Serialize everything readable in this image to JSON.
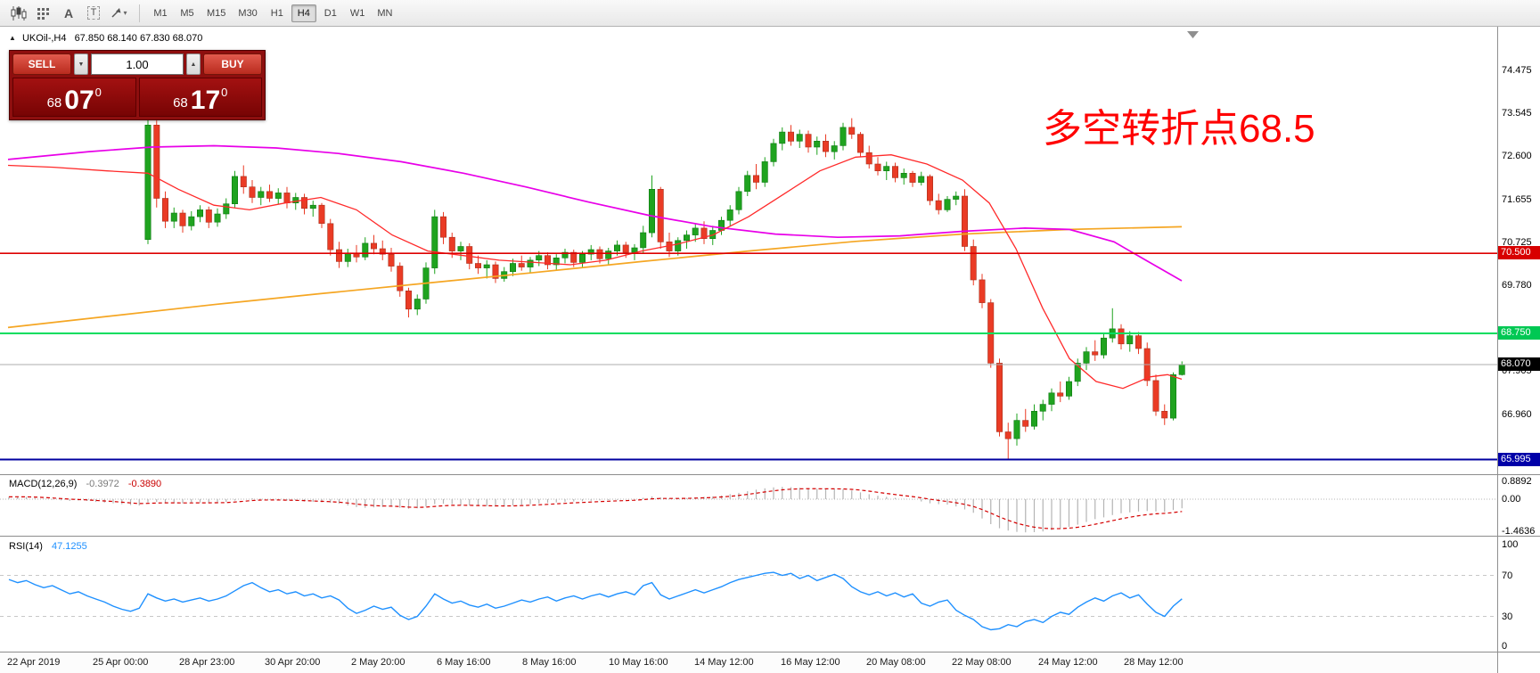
{
  "toolbar": {
    "timeframes": [
      "M1",
      "M5",
      "M15",
      "M30",
      "H1",
      "H4",
      "D1",
      "W1",
      "MN"
    ],
    "active_timeframe": "H4",
    "text_tool_glyph": "A",
    "label_tool_glyph": "T",
    "dropdown_glyph": "▾"
  },
  "chart": {
    "toggle_glyph": "▲",
    "symbol_title": "UKOil-,H4",
    "ohlc": "67.850 68.140 67.830 68.070",
    "annotation": {
      "text": "多空转折点68.5",
      "color": "#ff0000"
    },
    "trade_panel": {
      "sell_label": "SELL",
      "buy_label": "BUY",
      "volume": "1.00",
      "caret_up": "▲",
      "caret_down": "▼",
      "bid_small": "68",
      "bid_big": "07",
      "bid_sup": "0",
      "ask_small": "68",
      "ask_big": "17",
      "ask_sup": "0"
    },
    "price_axis": {
      "ticks": [
        74.475,
        73.545,
        72.6,
        71.655,
        70.725,
        69.78,
        67.905,
        66.96
      ],
      "levels": [
        {
          "value": "70.500",
          "price": 70.5,
          "bg": "#d80000"
        },
        {
          "value": "68.750",
          "price": 68.75,
          "bg": "#00c853"
        },
        {
          "value": "68.070",
          "price": 68.07,
          "bg": "#000000"
        },
        {
          "value": "65.995",
          "price": 65.995,
          "bg": "#0000a8"
        }
      ]
    },
    "time_axis": [
      "22 Apr 2019",
      "25 Apr 00:00",
      "28 Apr 23:00",
      "30 Apr 20:00",
      "2 May 20:00",
      "6 May 16:00",
      "8 May 16:00",
      "10 May 16:00",
      "14 May 12:00",
      "16 May 12:00",
      "20 May 08:00",
      "22 May 08:00",
      "24 May 12:00",
      "28 May 12:00"
    ]
  },
  "macd": {
    "label": "MACD(12,26,9)",
    "value_main": "-0.3972",
    "value_signal": "-0.3890",
    "axis": [
      "0.8892",
      "0.00",
      "-1.4636"
    ]
  },
  "rsi": {
    "label": "RSI(14)",
    "value": "47.1255",
    "axis": [
      "100",
      "70",
      "30",
      "0"
    ]
  },
  "chart_data": {
    "type": "candlestick",
    "symbol": "UKOil-",
    "timeframe": "H4",
    "ylim": [
      65.66,
      75.36
    ],
    "up_color": "#1fa31f",
    "down_color": "#ea3b25",
    "candles": [
      [
        70.8,
        73.45,
        70.7,
        73.3
      ],
      [
        73.3,
        73.4,
        71.5,
        71.7
      ],
      [
        71.7,
        71.85,
        71.05,
        71.2
      ],
      [
        71.2,
        71.5,
        71.05,
        71.38
      ],
      [
        71.38,
        71.45,
        70.95,
        71.1
      ],
      [
        71.1,
        71.42,
        71.0,
        71.3
      ],
      [
        71.3,
        71.55,
        71.18,
        71.45
      ],
      [
        71.45,
        71.52,
        71.05,
        71.18
      ],
      [
        71.18,
        71.48,
        71.08,
        71.36
      ],
      [
        71.36,
        71.7,
        71.25,
        71.58
      ],
      [
        71.58,
        72.3,
        71.5,
        72.18
      ],
      [
        72.18,
        72.42,
        71.8,
        71.95
      ],
      [
        71.95,
        72.1,
        71.6,
        71.72
      ],
      [
        71.72,
        71.95,
        71.55,
        71.85
      ],
      [
        71.85,
        72.0,
        71.62,
        71.7
      ],
      [
        71.7,
        71.92,
        71.58,
        71.82
      ],
      [
        71.82,
        71.95,
        71.48,
        71.6
      ],
      [
        71.6,
        71.82,
        71.45,
        71.72
      ],
      [
        71.72,
        71.8,
        71.35,
        71.48
      ],
      [
        71.48,
        71.65,
        71.3,
        71.55
      ],
      [
        71.55,
        71.6,
        71.05,
        71.15
      ],
      [
        71.15,
        71.25,
        70.45,
        70.58
      ],
      [
        70.58,
        70.75,
        70.18,
        70.32
      ],
      [
        70.32,
        70.6,
        70.2,
        70.5
      ],
      [
        70.5,
        70.68,
        70.3,
        70.42
      ],
      [
        70.42,
        70.85,
        70.35,
        70.72
      ],
      [
        70.72,
        70.9,
        70.48,
        70.6
      ],
      [
        70.6,
        70.78,
        70.35,
        70.48
      ],
      [
        70.48,
        70.62,
        70.1,
        70.22
      ],
      [
        70.22,
        70.3,
        69.55,
        69.68
      ],
      [
        69.68,
        69.75,
        69.1,
        69.28
      ],
      [
        69.28,
        69.6,
        69.15,
        69.5
      ],
      [
        69.5,
        70.3,
        69.4,
        70.18
      ],
      [
        70.18,
        71.45,
        70.05,
        71.3
      ],
      [
        71.3,
        71.4,
        70.7,
        70.85
      ],
      [
        70.85,
        70.95,
        70.4,
        70.55
      ],
      [
        70.55,
        70.75,
        70.35,
        70.65
      ],
      [
        70.65,
        70.72,
        70.15,
        70.28
      ],
      [
        70.28,
        70.45,
        70.05,
        70.18
      ],
      [
        70.18,
        70.35,
        69.95,
        70.25
      ],
      [
        70.25,
        70.32,
        69.85,
        69.95
      ],
      [
        69.95,
        70.2,
        69.88,
        70.1
      ],
      [
        70.1,
        70.38,
        70.0,
        70.28
      ],
      [
        70.28,
        70.45,
        70.12,
        70.2
      ],
      [
        70.2,
        70.42,
        70.08,
        70.35
      ],
      [
        70.35,
        70.55,
        70.22,
        70.45
      ],
      [
        70.45,
        70.52,
        70.15,
        70.25
      ],
      [
        70.25,
        70.48,
        70.12,
        70.4
      ],
      [
        70.4,
        70.6,
        70.28,
        70.52
      ],
      [
        70.52,
        70.58,
        70.2,
        70.3
      ],
      [
        70.3,
        70.55,
        70.18,
        70.48
      ],
      [
        70.48,
        70.68,
        70.35,
        70.58
      ],
      [
        70.58,
        70.65,
        70.28,
        70.38
      ],
      [
        70.38,
        70.62,
        70.25,
        70.55
      ],
      [
        70.55,
        70.78,
        70.45,
        70.68
      ],
      [
        70.68,
        70.75,
        70.4,
        70.52
      ],
      [
        70.52,
        70.7,
        70.35,
        70.62
      ],
      [
        70.62,
        71.1,
        70.5,
        70.95
      ],
      [
        70.95,
        72.2,
        70.85,
        71.9
      ],
      [
        71.9,
        71.95,
        70.6,
        70.75
      ],
      [
        70.75,
        70.95,
        70.42,
        70.55
      ],
      [
        70.55,
        70.85,
        70.45,
        70.78
      ],
      [
        70.78,
        71.0,
        70.6,
        70.9
      ],
      [
        70.9,
        71.15,
        70.75,
        71.05
      ],
      [
        71.05,
        71.2,
        70.7,
        70.82
      ],
      [
        70.82,
        71.1,
        70.68,
        71.0
      ],
      [
        71.0,
        71.3,
        70.9,
        71.22
      ],
      [
        71.22,
        71.55,
        71.1,
        71.45
      ],
      [
        71.45,
        71.95,
        71.35,
        71.85
      ],
      [
        71.85,
        72.3,
        71.75,
        72.2
      ],
      [
        72.2,
        72.45,
        71.9,
        72.05
      ],
      [
        72.05,
        72.6,
        71.95,
        72.5
      ],
      [
        72.5,
        73.0,
        72.4,
        72.9
      ],
      [
        72.9,
        73.25,
        72.75,
        73.15
      ],
      [
        73.15,
        73.3,
        72.85,
        72.95
      ],
      [
        72.95,
        73.2,
        72.8,
        73.1
      ],
      [
        73.1,
        73.18,
        72.7,
        72.82
      ],
      [
        72.82,
        73.05,
        72.65,
        72.95
      ],
      [
        72.95,
        73.1,
        72.6,
        72.72
      ],
      [
        72.72,
        72.95,
        72.55,
        72.85
      ],
      [
        72.85,
        73.35,
        72.75,
        73.25
      ],
      [
        73.25,
        73.45,
        73.0,
        73.1
      ],
      [
        73.1,
        73.15,
        72.6,
        72.7
      ],
      [
        72.7,
        72.85,
        72.35,
        72.45
      ],
      [
        72.45,
        72.6,
        72.2,
        72.3
      ],
      [
        72.3,
        72.5,
        72.1,
        72.4
      ],
      [
        72.4,
        72.48,
        72.05,
        72.15
      ],
      [
        72.15,
        72.35,
        72.0,
        72.25
      ],
      [
        72.25,
        72.3,
        71.95,
        72.05
      ],
      [
        72.05,
        72.28,
        71.98,
        72.18
      ],
      [
        72.18,
        72.22,
        71.55,
        71.65
      ],
      [
        71.65,
        71.8,
        71.35,
        71.45
      ],
      [
        71.45,
        71.75,
        71.4,
        71.68
      ],
      [
        71.68,
        71.85,
        71.55,
        71.75
      ],
      [
        71.75,
        71.9,
        70.55,
        70.65
      ],
      [
        70.65,
        70.8,
        69.8,
        69.92
      ],
      [
        69.92,
        70.05,
        69.3,
        69.42
      ],
      [
        69.42,
        69.5,
        68.0,
        68.1
      ],
      [
        68.1,
        68.2,
        66.5,
        66.6
      ],
      [
        66.6,
        66.8,
        65.99,
        66.45
      ],
      [
        66.45,
        67.0,
        66.3,
        66.85
      ],
      [
        66.85,
        67.1,
        66.6,
        66.72
      ],
      [
        66.72,
        67.2,
        66.65,
        67.05
      ],
      [
        67.05,
        67.3,
        66.85,
        67.2
      ],
      [
        67.2,
        67.55,
        67.05,
        67.45
      ],
      [
        67.45,
        67.7,
        67.25,
        67.38
      ],
      [
        67.38,
        67.8,
        67.3,
        67.7
      ],
      [
        67.7,
        68.2,
        67.6,
        68.1
      ],
      [
        68.1,
        68.45,
        67.95,
        68.35
      ],
      [
        68.35,
        68.6,
        68.15,
        68.28
      ],
      [
        68.28,
        68.75,
        68.2,
        68.65
      ],
      [
        68.65,
        69.3,
        68.55,
        68.85
      ],
      [
        68.85,
        68.95,
        68.4,
        68.52
      ],
      [
        68.52,
        68.8,
        68.35,
        68.7
      ],
      [
        68.7,
        68.78,
        68.3,
        68.42
      ],
      [
        68.42,
        68.55,
        67.6,
        67.72
      ],
      [
        67.72,
        67.85,
        66.95,
        67.05
      ],
      [
        67.05,
        67.2,
        66.75,
        66.9
      ],
      [
        66.9,
        67.9,
        66.85,
        67.85
      ],
      [
        67.85,
        68.14,
        67.83,
        68.07
      ]
    ],
    "ma_magenta": [
      [
        9,
        72.55
      ],
      [
        100,
        72.72
      ],
      [
        170,
        72.82
      ],
      [
        240,
        72.85
      ],
      [
        310,
        72.8
      ],
      [
        380,
        72.68
      ],
      [
        450,
        72.5
      ],
      [
        520,
        72.25
      ],
      [
        590,
        71.95
      ],
      [
        660,
        71.62
      ],
      [
        730,
        71.32
      ],
      [
        800,
        71.08
      ],
      [
        870,
        70.92
      ],
      [
        940,
        70.85
      ],
      [
        1010,
        70.88
      ],
      [
        1080,
        70.98
      ],
      [
        1150,
        71.05
      ],
      [
        1200,
        71.02
      ],
      [
        1250,
        70.75
      ],
      [
        1290,
        70.3
      ],
      [
        1326,
        69.9
      ]
    ],
    "ma_orange": [
      [
        9,
        68.88
      ],
      [
        120,
        69.12
      ],
      [
        240,
        69.38
      ],
      [
        360,
        69.62
      ],
      [
        480,
        69.85
      ],
      [
        600,
        70.08
      ],
      [
        720,
        70.32
      ],
      [
        840,
        70.55
      ],
      [
        960,
        70.76
      ],
      [
        1080,
        70.92
      ],
      [
        1200,
        71.02
      ],
      [
        1326,
        71.08
      ]
    ],
    "ma_red": [
      [
        9,
        72.42
      ],
      [
        60,
        72.38
      ],
      [
        120,
        72.3
      ],
      [
        166,
        72.25
      ],
      [
        200,
        71.9
      ],
      [
        240,
        71.55
      ],
      [
        280,
        71.45
      ],
      [
        320,
        71.6
      ],
      [
        360,
        71.72
      ],
      [
        400,
        71.45
      ],
      [
        440,
        70.9
      ],
      [
        480,
        70.55
      ],
      [
        520,
        70.45
      ],
      [
        560,
        70.35
      ],
      [
        600,
        70.3
      ],
      [
        640,
        70.25
      ],
      [
        680,
        70.35
      ],
      [
        720,
        70.55
      ],
      [
        760,
        70.7
      ],
      [
        800,
        70.9
      ],
      [
        840,
        71.3
      ],
      [
        880,
        71.8
      ],
      [
        920,
        72.3
      ],
      [
        960,
        72.6
      ],
      [
        1000,
        72.65
      ],
      [
        1040,
        72.45
      ],
      [
        1080,
        72.1
      ],
      [
        1110,
        71.6
      ],
      [
        1140,
        70.6
      ],
      [
        1170,
        69.3
      ],
      [
        1200,
        68.2
      ],
      [
        1230,
        67.7
      ],
      [
        1260,
        67.55
      ],
      [
        1290,
        67.8
      ],
      [
        1310,
        67.85
      ],
      [
        1326,
        67.75
      ]
    ],
    "hlines": [
      {
        "price": 68.07,
        "color": "#adadad",
        "width": 1
      },
      {
        "price": 70.5,
        "color": "#dd0000",
        "width": 1.6
      },
      {
        "price": 68.75,
        "color": "#00dd5e",
        "width": 2
      },
      {
        "price": 65.995,
        "color": "#0000a0",
        "width": 2
      }
    ],
    "macd_values": [
      0.1,
      0.12,
      0.1,
      0.06,
      0.02,
      -0.02,
      -0.05,
      -0.08,
      -0.06,
      -0.08,
      -0.12,
      -0.15,
      -0.18,
      -0.22,
      -0.26,
      -0.28,
      -0.15,
      -0.12,
      -0.14,
      -0.16,
      -0.18,
      -0.17,
      -0.15,
      -0.16,
      -0.14,
      -0.12,
      -0.06,
      0.0,
      0.04,
      0.02,
      -0.02,
      -0.04,
      -0.06,
      -0.08,
      -0.1,
      -0.12,
      -0.14,
      -0.16,
      -0.2,
      -0.28,
      -0.35,
      -0.38,
      -0.36,
      -0.34,
      -0.33,
      -0.38,
      -0.42,
      -0.4,
      -0.32,
      -0.22,
      -0.2,
      -0.22,
      -0.25,
      -0.28,
      -0.3,
      -0.31,
      -0.32,
      -0.31,
      -0.28,
      -0.25,
      -0.22,
      -0.19,
      -0.16,
      -0.14,
      -0.12,
      -0.1,
      -0.09,
      -0.07,
      -0.05,
      -0.04,
      -0.03,
      -0.02,
      -0.01,
      0.06,
      0.12,
      0.08,
      0.04,
      0.03,
      0.05,
      0.08,
      0.1,
      0.12,
      0.16,
      0.22,
      0.28,
      0.35,
      0.42,
      0.48,
      0.52,
      0.54,
      0.53,
      0.5,
      0.48,
      0.45,
      0.44,
      0.45,
      0.44,
      0.38,
      0.3,
      0.22,
      0.15,
      0.1,
      0.06,
      0.02,
      -0.02,
      -0.1,
      -0.18,
      -0.22,
      -0.24,
      -0.32,
      -0.45,
      -0.6,
      -0.85,
      -1.1,
      -1.28,
      -1.38,
      -1.44,
      -1.46,
      -1.45,
      -1.42,
      -1.36,
      -1.28,
      -1.22,
      -1.12,
      -1.0,
      -0.88,
      -0.8,
      -0.7,
      -0.62,
      -0.58,
      -0.54,
      -0.52,
      -0.54,
      -0.56,
      -0.48,
      -0.4
    ],
    "rsi_values": [
      66,
      63,
      65,
      61,
      58,
      60,
      56,
      52,
      54,
      50,
      47,
      44,
      40,
      37,
      35,
      38,
      52,
      48,
      45,
      47,
      44,
      46,
      48,
      45,
      47,
      50,
      55,
      60,
      63,
      58,
      54,
      56,
      52,
      54,
      50,
      52,
      48,
      50,
      46,
      38,
      33,
      36,
      40,
      37,
      39,
      31,
      27,
      30,
      40,
      52,
      47,
      43,
      45,
      41,
      39,
      42,
      38,
      40,
      43,
      46,
      44,
      47,
      49,
      45,
      48,
      50,
      47,
      50,
      52,
      49,
      52,
      54,
      51,
      60,
      63,
      51,
      47,
      50,
      53,
      56,
      53,
      56,
      59,
      63,
      66,
      68,
      70,
      72,
      73,
      70,
      72,
      67,
      70,
      65,
      68,
      71,
      67,
      59,
      54,
      51,
      54,
      50,
      53,
      49,
      52,
      43,
      40,
      44,
      46,
      36,
      31,
      27,
      20,
      17,
      18,
      22,
      20,
      25,
      27,
      24,
      30,
      34,
      32,
      39,
      44,
      48,
      45,
      50,
      53,
      48,
      51,
      42,
      34,
      30,
      40,
      47.1
    ],
    "rsi_levels": [
      70,
      30
    ]
  }
}
